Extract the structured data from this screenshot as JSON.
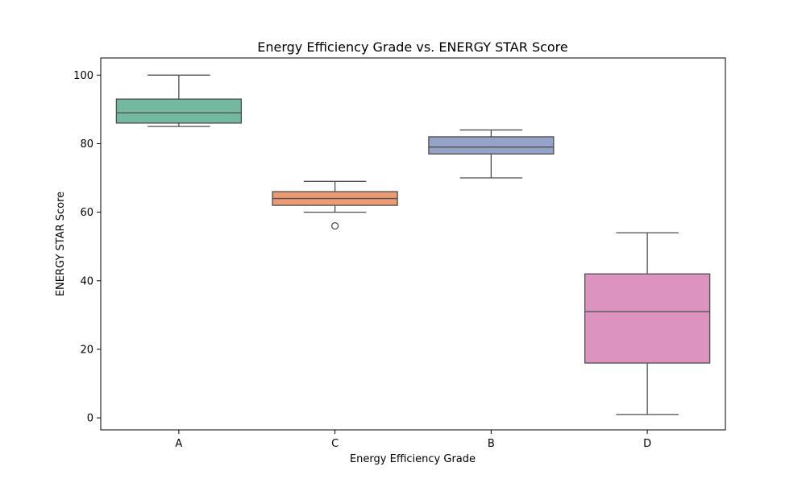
{
  "chart_data": {
    "type": "box",
    "title": "Energy Efficiency Grade vs. ENERGY STAR Score",
    "xlabel": "Energy Efficiency Grade",
    "ylabel": "ENERGY STAR Score",
    "ylim": [
      -3.5,
      105
    ],
    "yticks": [
      0,
      20,
      40,
      60,
      80,
      100
    ],
    "categories": [
      "A",
      "C",
      "B",
      "D"
    ],
    "boxes": [
      {
        "category": "A",
        "whisker_low": 85,
        "q1": 86,
        "median": 89,
        "q3": 93,
        "whisker_high": 100,
        "outliers": [],
        "color": "#72b9a0"
      },
      {
        "category": "C",
        "whisker_low": 60,
        "q1": 62,
        "median": 64,
        "q3": 66,
        "whisker_high": 69,
        "outliers": [
          56
        ],
        "color": "#ec9a74"
      },
      {
        "category": "B",
        "whisker_low": 70,
        "q1": 77,
        "median": 79,
        "q3": 82,
        "whisker_high": 84,
        "outliers": [],
        "color": "#95a3c8"
      },
      {
        "category": "D",
        "whisker_low": 1,
        "q1": 16,
        "median": 31,
        "q3": 42,
        "whisker_high": 54,
        "outliers": [],
        "color": "#dc93c0"
      }
    ],
    "grid": false,
    "legend": "none"
  }
}
